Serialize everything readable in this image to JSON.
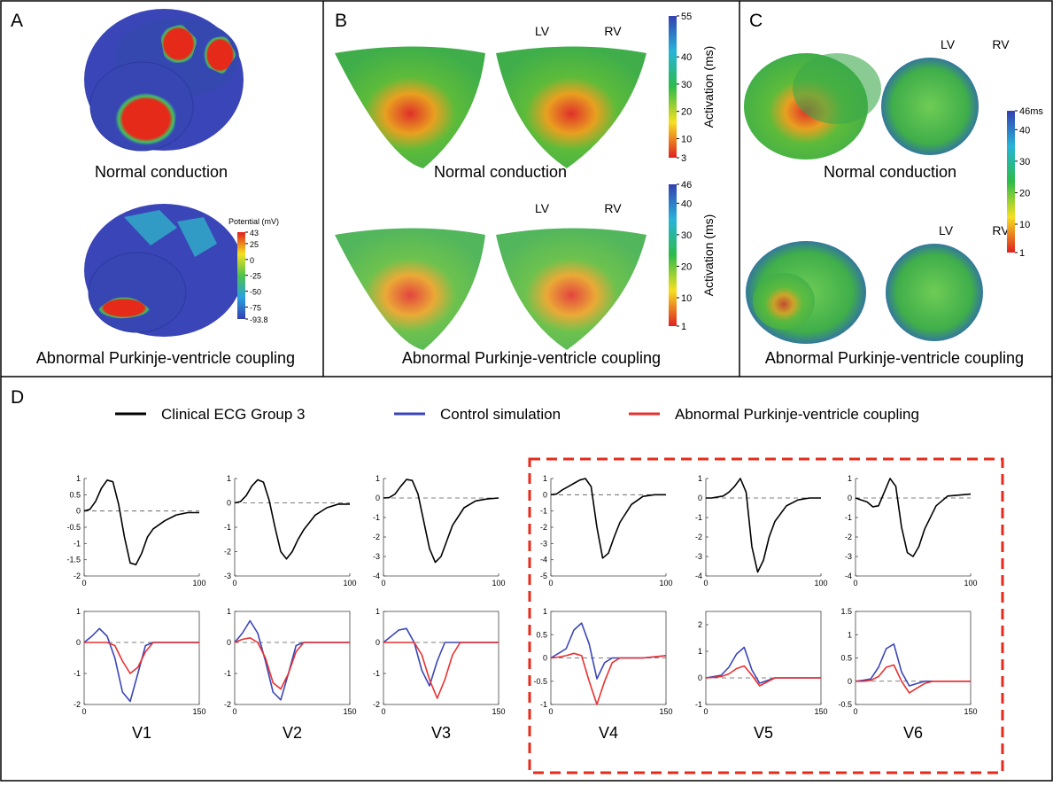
{
  "panels": [
    {
      "letter": "A",
      "captions": [
        "Normal conduction",
        "Abnormal Purkinje-ventricle coupling"
      ],
      "labels": [],
      "colorbars": [
        {
          "title": "Potential (mV)",
          "range": [
            -93.8,
            43
          ],
          "ticks": [
            43,
            25,
            0,
            -25,
            -50,
            -75,
            -93.8
          ],
          "colors": [
            "#3340b0",
            "#2aa0e0",
            "#4ec24e",
            "#f5e020",
            "#e02020"
          ]
        }
      ]
    },
    {
      "letter": "B",
      "captions": [
        "Normal conduction",
        "Abnormal Purkinje-ventricle coupling"
      ],
      "labels": [
        "LV",
        "RV",
        "LV",
        "RV"
      ],
      "colorbars": [
        {
          "title": "Activation (ms)",
          "range": [
            3,
            55
          ],
          "ticks": [
            55,
            40,
            30,
            20,
            10,
            3
          ],
          "colors": [
            "#e02020",
            "#f5e020",
            "#2dbb4a",
            "#28b4d8",
            "#3340b0"
          ]
        },
        {
          "title": "Activation (ms)",
          "range": [
            1,
            46
          ],
          "ticks": [
            46,
            40,
            30,
            20,
            10,
            1
          ],
          "colors": [
            "#e02020",
            "#f5e020",
            "#2dbb4a",
            "#28b4d8",
            "#3340b0"
          ]
        }
      ]
    },
    {
      "letter": "C",
      "captions": [
        "Normal conduction",
        "Abnormal Purkinje-ventricle coupling"
      ],
      "labels": [
        "LV",
        "RV",
        "LV",
        "RV"
      ],
      "colorbars": [
        {
          "range": [
            1,
            46
          ],
          "ticks": [
            {
              "value": 46,
              "label": "46ms"
            },
            40,
            30,
            20,
            10,
            1
          ],
          "colors": [
            "#e02020",
            "#f5e020",
            "#2dbb4a",
            "#28b4d8",
            "#3340b0"
          ]
        }
      ]
    }
  ],
  "panel_d": {
    "letter": "D",
    "legend": [
      {
        "label": "Clinical ECG Group 3",
        "color": "#000000"
      },
      {
        "label": "Control simulation",
        "color": "#3a45b8"
      },
      {
        "label": "Abnormal Purkinje-ventricle coupling",
        "color": "#e83030"
      }
    ]
  },
  "chart_data": [
    {
      "type": "line",
      "x": [
        0,
        5,
        10,
        15,
        20,
        25,
        30,
        35,
        40,
        45,
        50,
        55,
        60,
        70,
        80,
        90,
        100
      ],
      "xlim": [
        0,
        100
      ],
      "xticks": [
        0,
        100
      ],
      "ylim": [
        -2,
        1
      ],
      "yticks": [
        1,
        0.5,
        0,
        -0.5,
        -1,
        -1.5,
        -2
      ],
      "series": [
        {
          "color": "#000000",
          "values": [
            0,
            0.05,
            0.3,
            0.7,
            0.95,
            0.9,
            0.2,
            -0.8,
            -1.6,
            -1.65,
            -1.3,
            -0.8,
            -0.55,
            -0.3,
            -0.12,
            -0.05,
            -0.05
          ]
        }
      ]
    },
    {
      "type": "line",
      "x": [
        0,
        5,
        10,
        15,
        20,
        25,
        30,
        35,
        40,
        45,
        50,
        55,
        60,
        70,
        80,
        90,
        100
      ],
      "xlim": [
        0,
        100
      ],
      "xticks": [
        0,
        100
      ],
      "ylim": [
        -3,
        1
      ],
      "yticks": [
        1,
        0,
        -1,
        -2,
        -3
      ],
      "series": [
        {
          "color": "#000000",
          "values": [
            0,
            0.05,
            0.3,
            0.7,
            0.95,
            0.85,
            0.1,
            -1.0,
            -2.0,
            -2.3,
            -2.0,
            -1.5,
            -1.1,
            -0.5,
            -0.2,
            -0.05,
            -0.05
          ]
        }
      ]
    },
    {
      "type": "line",
      "x": [
        0,
        5,
        10,
        15,
        20,
        25,
        30,
        35,
        40,
        45,
        50,
        55,
        60,
        70,
        80,
        90,
        100
      ],
      "xlim": [
        0,
        100
      ],
      "xticks": [
        0,
        100
      ],
      "ylim": [
        -4,
        1
      ],
      "yticks": [
        1,
        0,
        -1,
        -2,
        -3,
        -4
      ],
      "series": [
        {
          "color": "#000000",
          "values": [
            0,
            0.02,
            0.2,
            0.6,
            0.95,
            0.9,
            0.2,
            -1.2,
            -2.6,
            -3.3,
            -3.0,
            -2.2,
            -1.4,
            -0.5,
            -0.15,
            -0.05,
            0
          ]
        }
      ]
    },
    {
      "type": "line",
      "x": [
        0,
        5,
        10,
        15,
        20,
        25,
        30,
        35,
        40,
        45,
        50,
        55,
        60,
        70,
        80,
        90,
        100
      ],
      "xlim": [
        0,
        100
      ],
      "xticks": [
        0,
        100
      ],
      "ylim": [
        -5,
        1
      ],
      "yticks": [
        1,
        0,
        -1,
        -2,
        -3,
        -4,
        -5
      ],
      "series": [
        {
          "color": "#000000",
          "values": [
            0,
            0.05,
            0.3,
            0.5,
            0.7,
            0.9,
            1.0,
            0.5,
            -2.0,
            -3.9,
            -3.6,
            -2.6,
            -1.7,
            -0.6,
            -0.1,
            0,
            0
          ]
        }
      ]
    },
    {
      "type": "line",
      "x": [
        0,
        5,
        10,
        15,
        20,
        25,
        30,
        35,
        40,
        45,
        50,
        55,
        60,
        70,
        80,
        90,
        100
      ],
      "xlim": [
        0,
        100
      ],
      "xticks": [
        0,
        100
      ],
      "ylim": [
        -4,
        1
      ],
      "yticks": [
        1,
        0,
        -1,
        -2,
        -3,
        -4
      ],
      "series": [
        {
          "color": "#000000",
          "values": [
            0,
            0,
            0.05,
            0.1,
            0.3,
            0.6,
            1.0,
            0.3,
            -2.5,
            -3.8,
            -3.2,
            -2.0,
            -1.2,
            -0.4,
            -0.1,
            0,
            0
          ]
        }
      ]
    },
    {
      "type": "line",
      "x": [
        0,
        5,
        10,
        15,
        20,
        25,
        30,
        35,
        40,
        45,
        50,
        55,
        60,
        70,
        80,
        90,
        100
      ],
      "xlim": [
        0,
        100
      ],
      "xticks": [
        0,
        100
      ],
      "ylim": [
        -4,
        1
      ],
      "yticks": [
        1,
        0,
        -1,
        -2,
        -3,
        -4
      ],
      "series": [
        {
          "color": "#000000",
          "values": [
            0,
            -0.1,
            -0.2,
            -0.45,
            -0.4,
            0.3,
            1.0,
            0.6,
            -1.5,
            -2.8,
            -3.0,
            -2.5,
            -1.6,
            -0.4,
            0.1,
            0.15,
            0.2
          ]
        }
      ]
    },
    {
      "type": "line",
      "xlabel": "V1",
      "box": true,
      "x": [
        0,
        10,
        20,
        30,
        40,
        50,
        60,
        70,
        80,
        90,
        100,
        120,
        150
      ],
      "xlim": [
        0,
        150
      ],
      "xticks": [
        0,
        150
      ],
      "ylim": [
        -2,
        1
      ],
      "yticks": [
        1,
        0,
        -1,
        -2
      ],
      "series": [
        {
          "color": "#3a45b8",
          "values": [
            0,
            0.2,
            0.45,
            0.2,
            -0.5,
            -1.6,
            -1.9,
            -1.0,
            -0.1,
            0,
            0,
            0,
            0
          ]
        },
        {
          "color": "#e83030",
          "values": [
            0,
            0,
            0,
            0,
            -0.1,
            -0.6,
            -1.0,
            -0.8,
            -0.3,
            0,
            0,
            0,
            0
          ]
        }
      ]
    },
    {
      "type": "line",
      "xlabel": "V2",
      "box": true,
      "x": [
        0,
        10,
        20,
        30,
        40,
        50,
        60,
        70,
        80,
        90,
        100,
        120,
        150
      ],
      "xlim": [
        0,
        150
      ],
      "xticks": [
        0,
        150
      ],
      "ylim": [
        -2,
        1
      ],
      "yticks": [
        1,
        0,
        -1,
        -2
      ],
      "series": [
        {
          "color": "#3a45b8",
          "values": [
            0,
            0.3,
            0.7,
            0.3,
            -0.6,
            -1.6,
            -1.85,
            -1.0,
            -0.1,
            0,
            0,
            0,
            0
          ]
        },
        {
          "color": "#e83030",
          "values": [
            0,
            0.1,
            0.15,
            0,
            -0.5,
            -1.3,
            -1.5,
            -1.0,
            -0.3,
            0,
            0,
            0,
            0
          ]
        }
      ]
    },
    {
      "type": "line",
      "xlabel": "V3",
      "box": true,
      "x": [
        0,
        10,
        20,
        30,
        40,
        50,
        60,
        70,
        80,
        90,
        100,
        120,
        150
      ],
      "xlim": [
        0,
        150
      ],
      "xticks": [
        0,
        150
      ],
      "ylim": [
        -2,
        1
      ],
      "yticks": [
        1,
        0,
        -1,
        -2
      ],
      "series": [
        {
          "color": "#3a45b8",
          "values": [
            0,
            0.2,
            0.4,
            0.45,
            0,
            -0.9,
            -1.4,
            -0.6,
            0,
            0,
            0,
            0,
            0
          ]
        },
        {
          "color": "#e83030",
          "values": [
            0,
            0,
            0,
            0,
            0,
            -0.4,
            -1.2,
            -1.8,
            -1.2,
            -0.4,
            0,
            0,
            0
          ]
        }
      ]
    },
    {
      "type": "line",
      "xlabel": "V4",
      "box": true,
      "x": [
        0,
        10,
        20,
        30,
        40,
        50,
        60,
        70,
        80,
        90,
        100,
        120,
        150
      ],
      "xlim": [
        0,
        150
      ],
      "xticks": [
        0,
        150
      ],
      "ylim": [
        -1,
        1
      ],
      "yticks": [
        1,
        0.5,
        0,
        -0.5,
        -1
      ],
      "series": [
        {
          "color": "#3a45b8",
          "values": [
            0,
            0.1,
            0.2,
            0.6,
            0.75,
            0.3,
            -0.45,
            -0.1,
            0,
            0,
            0,
            0,
            0.05
          ]
        },
        {
          "color": "#e83030",
          "values": [
            0,
            0.02,
            0.05,
            0.1,
            0.05,
            -0.5,
            -1.0,
            -0.5,
            -0.1,
            0,
            0,
            0,
            0.05
          ]
        }
      ]
    },
    {
      "type": "line",
      "xlabel": "V5",
      "box": true,
      "x": [
        0,
        10,
        20,
        30,
        40,
        50,
        60,
        70,
        80,
        90,
        100,
        120,
        150
      ],
      "xlim": [
        0,
        150
      ],
      "xticks": [
        0,
        150
      ],
      "ylim": [
        -1,
        2.5
      ],
      "yticks": [
        2,
        1,
        0,
        -1
      ],
      "series": [
        {
          "color": "#3a45b8",
          "values": [
            0,
            0.05,
            0.1,
            0.4,
            0.9,
            1.15,
            0.3,
            -0.2,
            -0.1,
            0,
            0,
            0,
            0
          ]
        },
        {
          "color": "#e83030",
          "values": [
            0,
            0.02,
            0.05,
            0.15,
            0.35,
            0.45,
            0.1,
            -0.3,
            -0.15,
            0,
            0,
            0,
            0
          ]
        }
      ]
    },
    {
      "type": "line",
      "xlabel": "V6",
      "box": true,
      "x": [
        0,
        10,
        20,
        30,
        40,
        50,
        60,
        70,
        80,
        90,
        100,
        120,
        150
      ],
      "xlim": [
        0,
        150
      ],
      "xticks": [
        0,
        150
      ],
      "ylim": [
        -0.5,
        1.5
      ],
      "yticks": [
        1.5,
        1,
        0.5,
        0,
        -0.5
      ],
      "series": [
        {
          "color": "#3a45b8",
          "values": [
            0,
            0.02,
            0.05,
            0.3,
            0.7,
            0.8,
            0.2,
            -0.1,
            -0.05,
            0,
            0,
            0,
            0
          ]
        },
        {
          "color": "#e83030",
          "values": [
            0,
            0,
            0.02,
            0.1,
            0.3,
            0.35,
            0,
            -0.25,
            -0.15,
            -0.05,
            0,
            0,
            0
          ]
        }
      ]
    }
  ]
}
